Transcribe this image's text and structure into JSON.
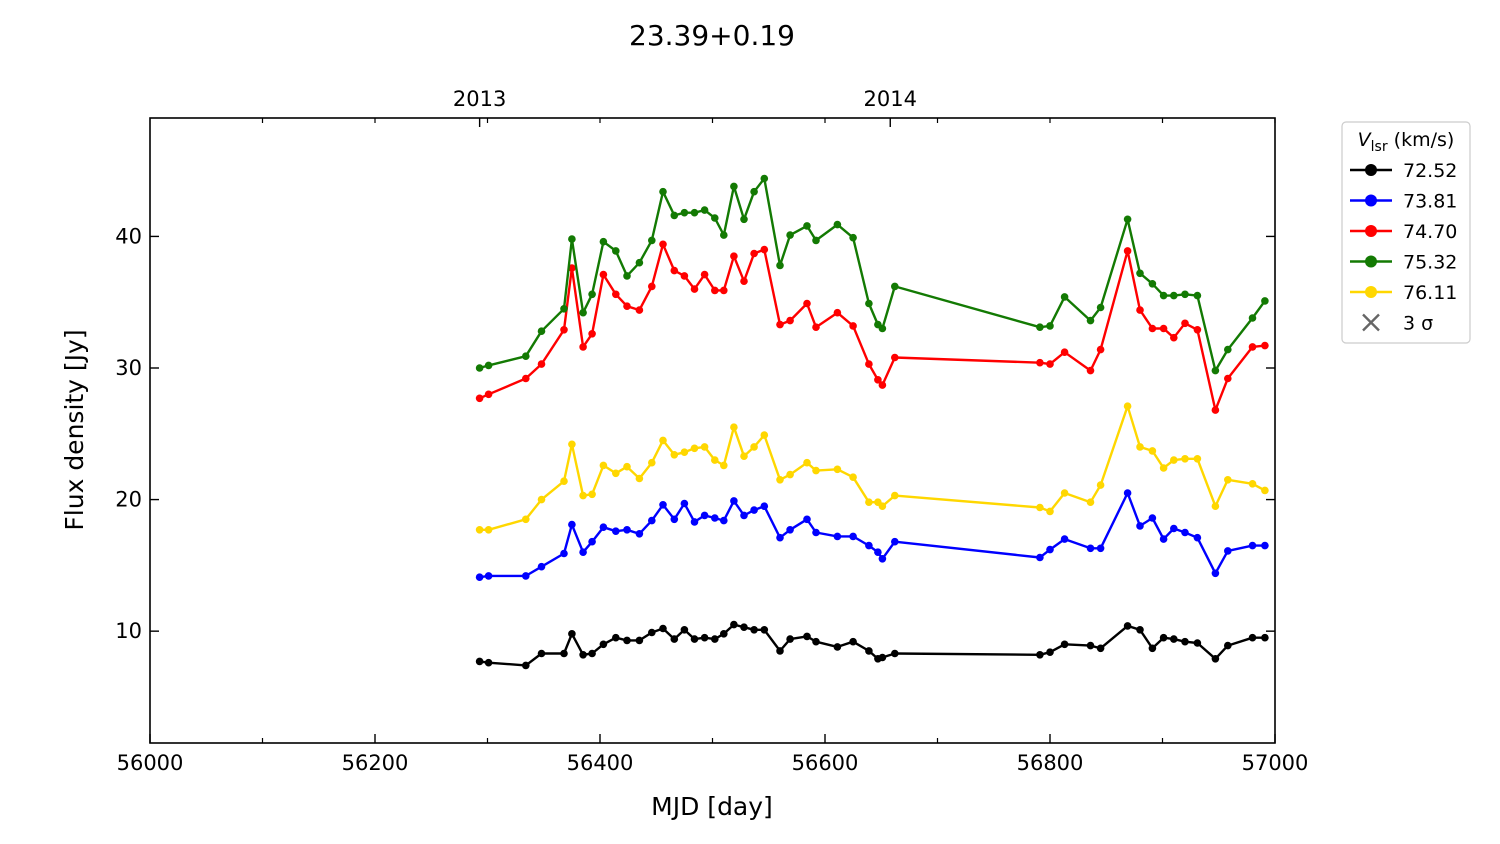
{
  "chart_data": {
    "type": "line",
    "title": "23.39+0.19",
    "xlabel": "MJD [day]",
    "ylabel": "Flux density [Jy]",
    "xlim": [
      56000,
      57000
    ],
    "ylim": [
      1.5,
      49
    ],
    "x_ticks": [
      56000,
      56200,
      56400,
      56600,
      56800,
      57000
    ],
    "x_tick_labels": [
      "56000",
      "56200",
      "56400",
      "56600",
      "56800",
      "57000"
    ],
    "y_ticks": [
      10,
      20,
      30,
      40
    ],
    "y_tick_labels": [
      "10",
      "20",
      "30",
      "40"
    ],
    "top_ticks": [
      {
        "x": 56293,
        "label": "2013"
      },
      {
        "x": 56658,
        "label": "2014"
      }
    ],
    "legend": {
      "title_symbol": "V",
      "title_subscript": "lsr",
      "title_units": " (km/s)",
      "position": "outside-right",
      "extra_entry": {
        "label": "3 σ",
        "color": "#666666",
        "marker": "x"
      }
    },
    "x": [
      56293,
      56301,
      56334,
      56348,
      56368,
      56375,
      56385,
      56393,
      56403,
      56414,
      56424,
      56435,
      56446,
      56456,
      56466,
      56475,
      56484,
      56493,
      56502,
      56510,
      56519,
      56528,
      56537,
      56546,
      56560,
      56569,
      56584,
      56592,
      56611,
      56625,
      56639,
      56647,
      56651,
      56662,
      56791,
      56800,
      56813,
      56836,
      56845,
      56869,
      56880,
      56891,
      56901,
      56910,
      56920,
      56931,
      56947,
      56958,
      56980,
      56991
    ],
    "series": [
      {
        "name": "72.52",
        "color": "#000000",
        "values": [
          7.7,
          7.6,
          7.4,
          8.3,
          8.3,
          9.8,
          8.2,
          8.3,
          9.0,
          9.5,
          9.3,
          9.3,
          9.9,
          10.2,
          9.4,
          10.1,
          9.4,
          9.5,
          9.4,
          9.8,
          10.5,
          10.3,
          10.1,
          10.1,
          8.5,
          9.4,
          9.6,
          9.2,
          8.8,
          9.2,
          8.5,
          7.9,
          8.0,
          8.3,
          8.2,
          8.4,
          9.0,
          8.9,
          8.7,
          10.4,
          10.1,
          8.7,
          9.5,
          9.4,
          9.2,
          9.1,
          7.9,
          8.9,
          9.5,
          9.5
        ]
      },
      {
        "name": "73.81",
        "color": "#0000ff",
        "values": [
          14.1,
          14.2,
          14.2,
          14.9,
          15.9,
          18.1,
          16.0,
          16.8,
          17.9,
          17.6,
          17.7,
          17.4,
          18.4,
          19.6,
          18.5,
          19.7,
          18.3,
          18.8,
          18.6,
          18.4,
          19.9,
          18.8,
          19.2,
          19.5,
          17.1,
          17.7,
          18.5,
          17.5,
          17.2,
          17.2,
          16.5,
          16.0,
          15.5,
          16.8,
          15.6,
          16.2,
          17.0,
          16.3,
          16.3,
          20.5,
          18.0,
          18.6,
          17.0,
          17.8,
          17.5,
          17.1,
          14.4,
          16.1,
          16.5,
          16.5
        ]
      },
      {
        "name": "74.70",
        "color": "#ff0000",
        "values": [
          27.7,
          28.0,
          29.2,
          30.3,
          32.9,
          37.6,
          31.6,
          32.6,
          37.1,
          35.6,
          34.7,
          34.4,
          36.2,
          39.4,
          37.4,
          37.0,
          36.0,
          37.1,
          35.9,
          35.9,
          38.5,
          36.6,
          38.7,
          39.0,
          33.3,
          33.6,
          34.9,
          33.1,
          34.2,
          33.2,
          30.3,
          29.1,
          28.7,
          30.8,
          30.4,
          30.3,
          31.2,
          29.8,
          31.4,
          38.9,
          34.4,
          33.0,
          33.0,
          32.3,
          33.4,
          32.9,
          26.8,
          29.2,
          31.6,
          31.7
        ]
      },
      {
        "name": "75.32",
        "color": "#137a03",
        "values": [
          30.0,
          30.2,
          30.9,
          32.8,
          34.5,
          39.8,
          34.2,
          35.6,
          39.6,
          38.9,
          37.0,
          38.0,
          39.7,
          43.4,
          41.6,
          41.8,
          41.8,
          42.0,
          41.4,
          40.1,
          43.8,
          41.3,
          43.4,
          44.4,
          37.8,
          40.1,
          40.8,
          39.7,
          40.9,
          39.9,
          34.9,
          33.3,
          33.0,
          36.2,
          33.1,
          33.2,
          35.4,
          33.6,
          34.6,
          41.3,
          37.2,
          36.4,
          35.5,
          35.5,
          35.6,
          35.5,
          29.8,
          31.4,
          33.8,
          35.1
        ]
      },
      {
        "name": "76.11",
        "color": "#ffd700",
        "values": [
          17.7,
          17.7,
          18.5,
          20.0,
          21.4,
          24.2,
          20.3,
          20.4,
          22.6,
          22.0,
          22.5,
          21.6,
          22.8,
          24.5,
          23.4,
          23.6,
          23.9,
          24.0,
          23.0,
          22.6,
          25.5,
          23.3,
          24.0,
          24.9,
          21.5,
          21.9,
          22.8,
          22.2,
          22.3,
          21.7,
          19.8,
          19.8,
          19.5,
          20.3,
          19.4,
          19.1,
          20.5,
          19.8,
          21.1,
          27.1,
          24.0,
          23.7,
          22.4,
          23.0,
          23.1,
          23.1,
          19.5,
          21.5,
          21.2,
          20.7
        ]
      }
    ]
  }
}
